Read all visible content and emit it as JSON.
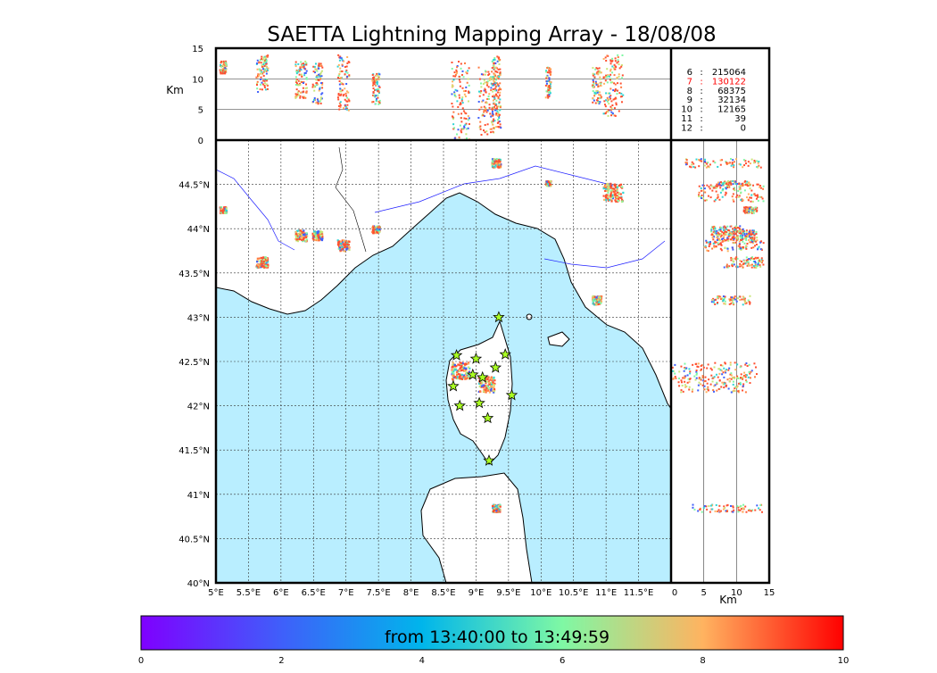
{
  "chart_data": {
    "type": "scatter",
    "title": "SAETTA Lightning Mapping Array - 18/08/08",
    "map": {
      "x_range": [
        5,
        12
      ],
      "y_range": [
        40,
        45
      ],
      "x_ticks": [
        "5°E",
        "5.5°E",
        "6°E",
        "6.5°E",
        "7°E",
        "7.5°E",
        "8°E",
        "8.5°E",
        "9°E",
        "9.5°E",
        "10°E",
        "10.5°E",
        "11°E",
        "11.5°E"
      ],
      "y_ticks": [
        "40°N",
        "40.5°N",
        "41°N",
        "41.5°N",
        "42°N",
        "42.5°N",
        "43°N",
        "43.5°N",
        "44°N",
        "44.5°N"
      ]
    },
    "altitude_top": {
      "ylabel": "Km",
      "y_range": [
        0,
        15
      ],
      "y_ticks": [
        "0",
        "5",
        "10",
        "15"
      ]
    },
    "altitude_side": {
      "xlabel": "Km",
      "x_range": [
        0,
        15
      ],
      "x_ticks": [
        "0",
        "5",
        "10",
        "15"
      ]
    },
    "station_counts": [
      {
        "stations": "6",
        "count": "215064",
        "highlight": false
      },
      {
        "stations": "7",
        "count": "130122",
        "highlight": true
      },
      {
        "stations": "8",
        "count": "68375",
        "highlight": false
      },
      {
        "stations": "9",
        "count": "32134",
        "highlight": false
      },
      {
        "stations": "10",
        "count": "12165",
        "highlight": false
      },
      {
        "stations": "11",
        "count": "39",
        "highlight": false
      },
      {
        "stations": "12",
        "count": "0",
        "highlight": false
      }
    ],
    "colorbar": {
      "label": "from 13:40:00 to 13:49:59",
      "range": [
        0,
        10
      ],
      "ticks": [
        "0",
        "2",
        "4",
        "6",
        "8",
        "10"
      ]
    },
    "clusters": [
      {
        "name": "nw-france-a",
        "lon": 5.1,
        "lat": 44.22,
        "alt": [
          11,
          13
        ],
        "size": 0.1
      },
      {
        "name": "nice-west",
        "lon": 5.7,
        "lat": 43.63,
        "alt": [
          8,
          14
        ],
        "size": 0.18
      },
      {
        "name": "alps-a",
        "lon": 6.3,
        "lat": 43.93,
        "alt": [
          7,
          13
        ],
        "size": 0.18
      },
      {
        "name": "alps-b",
        "lon": 6.55,
        "lat": 43.93,
        "alt": [
          6,
          13
        ],
        "size": 0.15
      },
      {
        "name": "alps-c",
        "lon": 6.95,
        "lat": 43.82,
        "alt": [
          5,
          14
        ],
        "size": 0.18
      },
      {
        "name": "liguria-a",
        "lon": 7.45,
        "lat": 44.0,
        "alt": [
          6,
          11
        ],
        "size": 0.12
      },
      {
        "name": "corsica-w",
        "lon": 8.75,
        "lat": 42.4,
        "alt": [
          0,
          13
        ],
        "size": 0.28
      },
      {
        "name": "corsica-e",
        "lon": 9.15,
        "lat": 42.25,
        "alt": [
          1,
          12
        ],
        "size": 0.25
      },
      {
        "name": "sardinia-n",
        "lon": 9.3,
        "lat": 40.85,
        "alt": [
          3,
          14
        ],
        "size": 0.12
      },
      {
        "name": "po-valley",
        "lon": 9.3,
        "lat": 44.75,
        "alt": [
          2,
          14
        ],
        "size": 0.14
      },
      {
        "name": "emilia",
        "lon": 10.1,
        "lat": 44.52,
        "alt": [
          7,
          12
        ],
        "size": 0.08
      },
      {
        "name": "tuscany-n",
        "lon": 11.1,
        "lat": 44.42,
        "alt": [
          4,
          14
        ],
        "size": 0.3
      },
      {
        "name": "tuscany-s",
        "lon": 10.85,
        "lat": 43.2,
        "alt": [
          6,
          12
        ],
        "size": 0.14
      }
    ],
    "stations": [
      {
        "lon": 9.35,
        "lat": 43.0
      },
      {
        "lon": 8.7,
        "lat": 42.57
      },
      {
        "lon": 9.0,
        "lat": 42.53
      },
      {
        "lon": 9.45,
        "lat": 42.58
      },
      {
        "lon": 9.3,
        "lat": 42.43
      },
      {
        "lon": 8.95,
        "lat": 42.35
      },
      {
        "lon": 9.1,
        "lat": 42.32
      },
      {
        "lon": 8.65,
        "lat": 42.22
      },
      {
        "lon": 9.55,
        "lat": 42.12
      },
      {
        "lon": 9.05,
        "lat": 42.03
      },
      {
        "lon": 8.75,
        "lat": 42.0
      },
      {
        "lon": 9.18,
        "lat": 41.86
      },
      {
        "lon": 9.2,
        "lat": 41.38
      }
    ]
  }
}
